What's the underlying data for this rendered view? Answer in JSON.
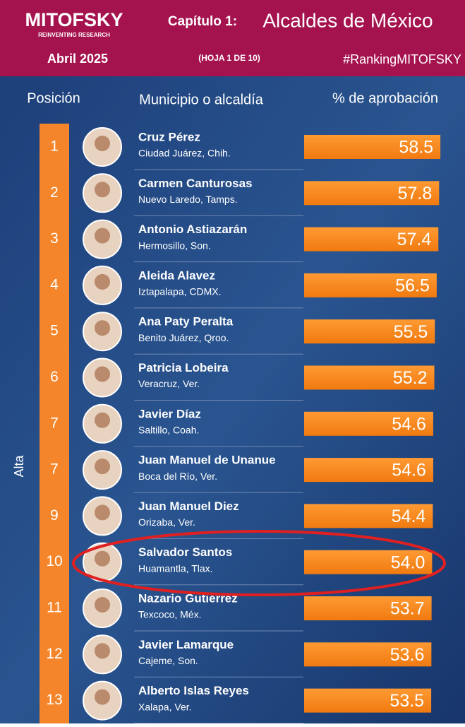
{
  "header": {
    "brand": "MITOFSKY",
    "tagline": "REINVENTING RESEARCH",
    "chapter": "Capítulo 1:",
    "title": "Alcaldes de México",
    "date": "Abril 2025",
    "sheet": "(HOJA 1 DE 10)",
    "hashtag": "#RankingMITOFSKY"
  },
  "columns": {
    "position": "Posición",
    "municipality": "Municipio o alcaldía",
    "approval": "% de aprobación"
  },
  "side_label": "Alta",
  "rows": [
    {
      "position": 1,
      "name": "Cruz Pérez",
      "place": "Ciudad Juárez, Chih.",
      "value": 58.5
    },
    {
      "position": 2,
      "name": "Carmen Canturosas",
      "place": "Nuevo Laredo, Tamps.",
      "value": 57.8
    },
    {
      "position": 3,
      "name": "Antonio Astiazarán",
      "place": "Hermosillo, Son.",
      "value": 57.4
    },
    {
      "position": 4,
      "name": "Aleida Alavez",
      "place": "Iztapalapa, CDMX.",
      "value": 56.5
    },
    {
      "position": 5,
      "name": "Ana Paty Peralta",
      "place": "Benito Juárez, Qroo.",
      "value": 55.5
    },
    {
      "position": 6,
      "name": "Patricia Lobeira",
      "place": "Veracruz, Ver.",
      "value": 55.2
    },
    {
      "position": 7,
      "name": "Javier Díaz",
      "place": "Saltillo, Coah.",
      "value": 54.6
    },
    {
      "position": 7,
      "name": "Juan Manuel de Unanue",
      "place": "Boca del Río, Ver.",
      "value": 54.6
    },
    {
      "position": 9,
      "name": "Juan Manuel Diez",
      "place": "Orizaba, Ver.",
      "value": 54.4
    },
    {
      "position": 10,
      "name": "Salvador Santos",
      "place": "Huamantla, Tlax.",
      "value": 54,
      "value_label": "54.0"
    },
    {
      "position": 11,
      "name": "Nazario Gutiérrez",
      "place": "Texcoco, Méx.",
      "value": 53.7
    },
    {
      "position": 12,
      "name": "Javier Lamarque",
      "place": "Cajeme, Son.",
      "value": 53.6
    },
    {
      "position": 13,
      "name": "Alberto Islas Reyes",
      "place": "Xalapa, Ver.",
      "value": 53.5
    }
  ]
}
